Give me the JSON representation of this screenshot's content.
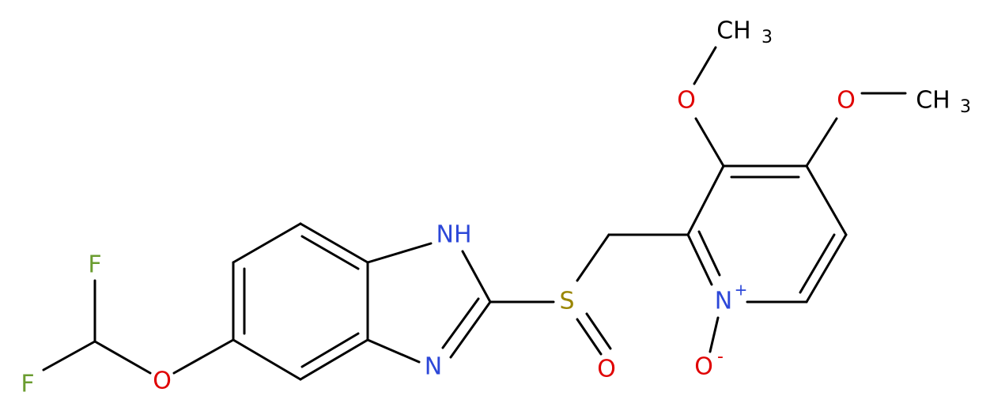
{
  "atoms": [
    {
      "symbol": "F"
    },
    {
      "symbol": "F"
    },
    {
      "symbol": "O"
    },
    {
      "symbol": "NH"
    },
    {
      "symbol": "N"
    },
    {
      "symbol": "S"
    },
    {
      "symbol": "O"
    },
    {
      "symbol": "N",
      "charge": "+"
    },
    {
      "symbol": "O",
      "charge": "-"
    },
    {
      "symbol": "O"
    },
    {
      "symbol": "CH",
      "sub": "3"
    },
    {
      "symbol": "O"
    },
    {
      "symbol": "CH",
      "sub": "3"
    }
  ]
}
